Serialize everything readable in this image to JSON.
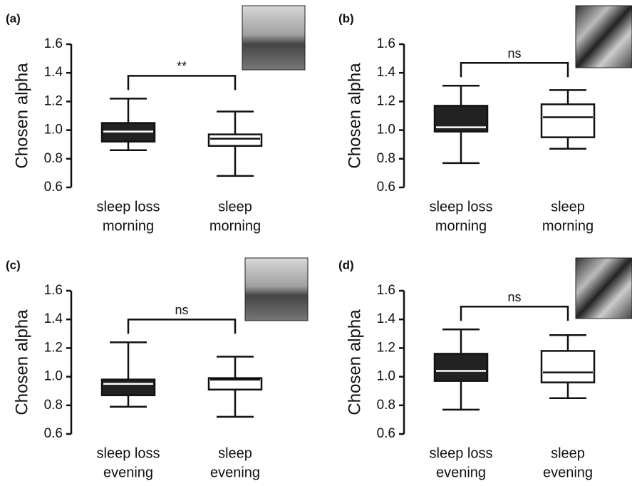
{
  "chart_data": [
    {
      "type": "boxplot",
      "panel": "(a)",
      "ylabel": "Chosen alpha",
      "annotation": "**",
      "ylim": [
        0.6,
        1.6
      ],
      "yticks": [
        0.6,
        0.8,
        {
          "value": 1,
          "label": "1.0"
        },
        1.2,
        1.4,
        1.6
      ],
      "categories": [
        [
          "sleep loss",
          "morning"
        ],
        [
          "sleep",
          "morning"
        ]
      ],
      "boxes": [
        {
          "min": 0.86,
          "q1": 0.92,
          "median": 0.99,
          "q3": 1.05,
          "max": 1.22,
          "color": "#222222"
        },
        {
          "min": 0.68,
          "q1": 0.89,
          "median": 0.94,
          "q3": 0.97,
          "max": 1.13,
          "color": "#ffffff"
        }
      ]
    },
    {
      "type": "boxplot",
      "panel": "(b)",
      "ylabel": "Chosen alpha",
      "annotation": "ns",
      "ylim": [
        0.6,
        1.6
      ],
      "yticks": [
        0.6,
        0.8,
        {
          "value": 1,
          "label": "1.0"
        },
        1.2,
        1.4,
        1.6
      ],
      "categories": [
        [
          "sleep loss",
          "morning"
        ],
        [
          "sleep",
          "morning"
        ]
      ],
      "boxes": [
        {
          "min": 0.77,
          "q1": 0.99,
          "median": 1.02,
          "q3": 1.17,
          "max": 1.31,
          "color": "#222222"
        },
        {
          "min": 0.87,
          "q1": 0.95,
          "median": 1.09,
          "q3": 1.18,
          "max": 1.28,
          "color": "#ffffff"
        }
      ]
    },
    {
      "type": "boxplot",
      "panel": "(c)",
      "ylabel": "Chosen alpha",
      "annotation": "ns",
      "ylim": [
        0.6,
        1.6
      ],
      "yticks": [
        0.6,
        0.8,
        {
          "value": 1,
          "label": "1.0"
        },
        1.2,
        1.4,
        1.6
      ],
      "categories": [
        [
          "sleep loss",
          "evening"
        ],
        [
          "sleep",
          "evening"
        ]
      ],
      "boxes": [
        {
          "min": 0.79,
          "q1": 0.87,
          "median": 0.95,
          "q3": 0.98,
          "max": 1.24,
          "color": "#222222"
        },
        {
          "min": 0.72,
          "q1": 0.91,
          "median": 0.98,
          "q3": 0.99,
          "max": 1.14,
          "color": "#ffffff"
        }
      ]
    },
    {
      "type": "boxplot",
      "panel": "(d)",
      "ylabel": "Chosen alpha",
      "annotation": "ns",
      "ylim": [
        0.6,
        1.6
      ],
      "yticks": [
        0.6,
        0.8,
        {
          "value": 1,
          "label": "1.0"
        },
        1.2,
        1.4,
        1.6
      ],
      "categories": [
        [
          "sleep loss",
          "evening"
        ],
        [
          "sleep",
          "evening"
        ]
      ],
      "boxes": [
        {
          "min": 0.77,
          "q1": 0.97,
          "median": 1.04,
          "q3": 1.16,
          "max": 1.33,
          "color": "#222222"
        },
        {
          "min": 0.85,
          "q1": 0.96,
          "median": 1.03,
          "q3": 1.18,
          "max": 1.29,
          "color": "#ffffff"
        }
      ]
    }
  ]
}
